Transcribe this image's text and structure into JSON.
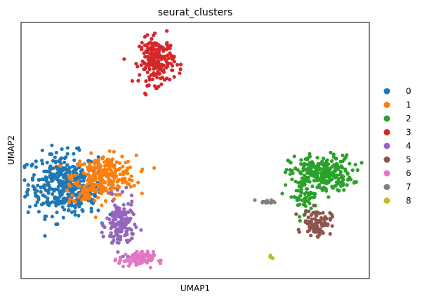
{
  "chart_data": {
    "type": "scatter",
    "title": "seurat_clusters",
    "xlabel": "UMAP1",
    "ylabel": "UMAP2",
    "xlim": [
      0,
      100
    ],
    "ylim": [
      0,
      100
    ],
    "ticks": "none",
    "grid": false,
    "legend_position": "right",
    "series": [
      {
        "name": "0",
        "color": "#1f77b4",
        "clusters": [
          {
            "x": 12,
            "y": 37,
            "sx": 5.0,
            "sy": 6.0,
            "n": 340
          },
          {
            "x": 17,
            "y": 32,
            "sx": 3.5,
            "sy": 3.5,
            "n": 80
          }
        ]
      },
      {
        "name": "1",
        "color": "#ff7f0e",
        "clusters": [
          {
            "x": 24,
            "y": 40,
            "sx": 4.5,
            "sy": 4.0,
            "n": 260
          },
          {
            "x": 19,
            "y": 34,
            "sx": 2.0,
            "sy": 2.5,
            "n": 40
          }
        ]
      },
      {
        "name": "2",
        "color": "#2ca02c",
        "clusters": [
          {
            "x": 86,
            "y": 41,
            "sx": 4.5,
            "sy": 3.5,
            "n": 260
          },
          {
            "x": 81,
            "y": 32,
            "sx": 2.0,
            "sy": 3.0,
            "n": 50
          }
        ]
      },
      {
        "name": "3",
        "color": "#d62728",
        "clusters": [
          {
            "x": 39,
            "y": 85,
            "sx": 2.5,
            "sy": 4.5,
            "n": 200
          }
        ]
      },
      {
        "name": "4",
        "color": "#9467bd",
        "clusters": [
          {
            "x": 28.5,
            "y": 21,
            "sx": 2.0,
            "sy": 5.0,
            "n": 150
          }
        ]
      },
      {
        "name": "5",
        "color": "#8c564b",
        "clusters": [
          {
            "x": 85,
            "y": 22,
            "sx": 2.0,
            "sy": 2.5,
            "n": 100
          }
        ]
      },
      {
        "name": "6",
        "color": "#e377c2",
        "clusters": [
          {
            "x": 33,
            "y": 7.5,
            "sx": 2.5,
            "sy": 1.5,
            "n": 90
          }
        ]
      },
      {
        "name": "7",
        "color": "#7f7f7f",
        "clusters": [
          {
            "x": 71,
            "y": 30,
            "sx": 1.5,
            "sy": 0.4,
            "n": 12
          }
        ]
      },
      {
        "name": "8",
        "color": "#bcbd22",
        "clusters": [
          {
            "x": 71.5,
            "y": 8.5,
            "sx": 0.5,
            "sy": 0.4,
            "n": 5
          }
        ]
      }
    ]
  }
}
